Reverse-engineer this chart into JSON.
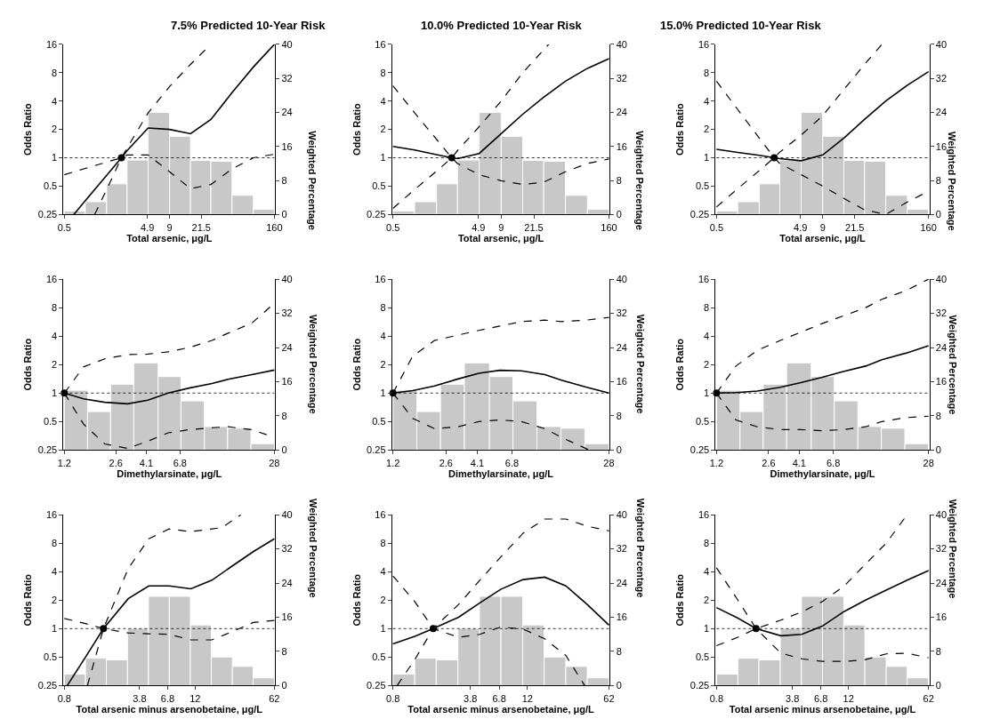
{
  "chart_data": [
    {
      "type": "line",
      "title": "7.5% Predicted 10-Year Risk",
      "xlabel": "Total arsenic, μg/L",
      "ylabel": "Odds Ratio",
      "y2label": "Weighted Percentage",
      "log": "xy",
      "xlim": [
        0.5,
        160
      ],
      "xticks": [
        0.5,
        4.9,
        9,
        21.5,
        160
      ],
      "ylim": [
        0.25,
        16
      ],
      "yticks": [
        0.25,
        0.5,
        1,
        2,
        4,
        8,
        16
      ],
      "y2lim": [
        0,
        40
      ],
      "y2ticks": [
        0,
        8,
        16,
        24,
        32,
        40
      ],
      "grid": false,
      "legend": false,
      "ref_lines": [
        {
          "axis": "y",
          "value": 1,
          "color": "#000000",
          "line_style": "dotted"
        }
      ],
      "series": [
        {
          "type": "histogram",
          "axis": "y2",
          "color": "#c8c8c8",
          "bins": [
            0.5,
            0.89,
            1.6,
            2.8,
            5,
            9,
            16,
            28,
            50,
            90,
            160
          ],
          "values": [
            0.8,
            3,
            7.2,
            12.8,
            24,
            18.4,
            12.7,
            12.5,
            4.5,
            1.2
          ]
        },
        {
          "type": "line",
          "color": "#000000",
          "line_style": "solid",
          "x": [
            0.65,
            0.89,
            1.6,
            2.4,
            2.8,
            5,
            9,
            16,
            28,
            50,
            90,
            160
          ],
          "values": [
            0.25,
            0.35,
            0.65,
            1,
            1.19,
            2.07,
            2,
            1.8,
            2.55,
            4.9,
            9.2,
            16
          ]
        },
        {
          "type": "line",
          "color": "#000000",
          "line_style": "dashed",
          "x": [
            1.15,
            1.6,
            2.4,
            2.8,
            5,
            9,
            16,
            28
          ],
          "values": [
            0.25,
            0.46,
            1,
            1.27,
            3.0,
            5.7,
            9.8,
            16
          ]
        },
        {
          "type": "line",
          "color": "#000000",
          "line_style": "dashed",
          "x": [
            0.5,
            0.89,
            1.6,
            2.4,
            2.8,
            5,
            9,
            16,
            28,
            50,
            90,
            160
          ],
          "values": [
            0.66,
            0.77,
            0.9,
            1,
            1.07,
            1.07,
            0.71,
            0.47,
            0.52,
            0.76,
            1,
            1.09
          ]
        },
        {
          "type": "scatter",
          "color": "#000000",
          "marker": "circle",
          "x": [
            2.4
          ],
          "values": [
            1
          ]
        }
      ]
    },
    {
      "type": "line",
      "title": "10.0% Predicted 10-Year Risk",
      "xlabel": "Total arsenic, μg/L",
      "ylabel": "Odds Ratio",
      "y2label": "Weighted Percentage",
      "log": "xy",
      "xlim": [
        0.5,
        160
      ],
      "xticks": [
        0.5,
        4.9,
        9,
        21.5,
        160
      ],
      "ylim": [
        0.25,
        16
      ],
      "yticks": [
        0.25,
        0.5,
        1,
        2,
        4,
        8,
        16
      ],
      "y2lim": [
        0,
        40
      ],
      "y2ticks": [
        0,
        8,
        16,
        24,
        32,
        40
      ],
      "grid": false,
      "legend": false,
      "ref_lines": [
        {
          "axis": "y",
          "value": 1,
          "color": "#000000",
          "line_style": "dotted"
        }
      ],
      "series": [
        {
          "type": "histogram",
          "axis": "y2",
          "color": "#c8c8c8",
          "bins": [
            0.5,
            0.89,
            1.6,
            2.8,
            5,
            9,
            16,
            28,
            50,
            90,
            160
          ],
          "values": [
            0.8,
            3,
            7.2,
            12.8,
            24,
            18.4,
            12.7,
            12.5,
            4.5,
            1.2
          ]
        },
        {
          "type": "line",
          "color": "#000000",
          "line_style": "solid",
          "x": [
            0.5,
            0.89,
            1.6,
            2.4,
            2.8,
            5,
            9,
            16,
            28,
            50,
            90,
            160
          ],
          "values": [
            1.32,
            1.21,
            1.08,
            1,
            0.98,
            1.11,
            1.8,
            2.9,
            4.4,
            6.5,
            8.9,
            11.3
          ]
        },
        {
          "type": "line",
          "color": "#000000",
          "line_style": "dashed",
          "x": [
            0.5,
            0.89,
            1.6,
            2.4,
            2.8,
            5,
            9,
            16,
            32
          ],
          "values": [
            0.29,
            0.46,
            0.72,
            1,
            1.19,
            2.14,
            4,
            8,
            16
          ]
        },
        {
          "type": "line",
          "color": "#000000",
          "line_style": "dashed",
          "x": [
            0.5,
            0.89,
            1.6,
            2.4,
            2.8,
            5,
            9,
            16,
            28,
            50,
            90,
            160
          ],
          "values": [
            5.8,
            3.0,
            1.57,
            1,
            0.87,
            0.66,
            0.57,
            0.52,
            0.55,
            0.71,
            0.87,
            0.97
          ]
        },
        {
          "type": "scatter",
          "color": "#000000",
          "marker": "circle",
          "x": [
            2.4
          ],
          "values": [
            1
          ]
        }
      ]
    },
    {
      "type": "line",
      "title": "15.0% Predicted 10-Year Risk",
      "xlabel": "Total arsenic, μg/L",
      "ylabel": "Odds Ratio",
      "y2label": "Weighted Percentage",
      "log": "xy",
      "xlim": [
        0.5,
        160
      ],
      "xticks": [
        0.5,
        4.9,
        9,
        21.5,
        160
      ],
      "ylim": [
        0.25,
        16
      ],
      "yticks": [
        0.25,
        0.5,
        1,
        2,
        4,
        8,
        16
      ],
      "y2lim": [
        0,
        40
      ],
      "y2ticks": [
        0,
        8,
        16,
        24,
        32,
        40
      ],
      "grid": false,
      "legend": false,
      "ref_lines": [
        {
          "axis": "y",
          "value": 1,
          "color": "#000000",
          "line_style": "dotted"
        }
      ],
      "series": [
        {
          "type": "histogram",
          "axis": "y2",
          "color": "#c8c8c8",
          "bins": [
            0.5,
            0.89,
            1.6,
            2.8,
            5,
            9,
            16,
            28,
            50,
            90,
            160
          ],
          "values": [
            0.8,
            3,
            7.2,
            12.8,
            24,
            18.4,
            12.7,
            12.5,
            4.5,
            1.2
          ]
        },
        {
          "type": "line",
          "color": "#000000",
          "line_style": "solid",
          "x": [
            0.5,
            0.89,
            1.6,
            2.4,
            2.8,
            5,
            9,
            16,
            28,
            50,
            90,
            160
          ],
          "values": [
            1.23,
            1.14,
            1.06,
            1,
            0.98,
            0.93,
            1.07,
            1.62,
            2.55,
            4,
            5.9,
            8.2
          ]
        },
        {
          "type": "line",
          "color": "#000000",
          "line_style": "dashed",
          "x": [
            0.5,
            0.89,
            1.6,
            2.4,
            2.8,
            5,
            9,
            16,
            28,
            45
          ],
          "values": [
            0.3,
            0.47,
            0.73,
            1,
            1.15,
            1.74,
            2.8,
            5.3,
            9.8,
            16
          ]
        },
        {
          "type": "line",
          "color": "#000000",
          "line_style": "dashed",
          "x": [
            0.5,
            0.89,
            1.6,
            2.4,
            2.8,
            5,
            9,
            16,
            28,
            50,
            90,
            160
          ],
          "values": [
            6.5,
            3.25,
            1.62,
            1,
            0.87,
            0.66,
            0.5,
            0.37,
            0.28,
            0.25,
            0.34,
            0.44
          ]
        },
        {
          "type": "scatter",
          "color": "#000000",
          "marker": "circle",
          "x": [
            2.4
          ],
          "values": [
            1
          ]
        }
      ]
    },
    {
      "type": "line",
      "xlabel": "Dimethylarsinate, μg/L",
      "ylabel": "Odds Ratio",
      "y2label": "Weighted Percentage",
      "log": "xy",
      "xlim": [
        1.2,
        28
      ],
      "xticks": [
        1.2,
        2.6,
        4.1,
        6.8,
        28
      ],
      "ylim": [
        0.25,
        16
      ],
      "yticks": [
        0.25,
        0.5,
        1,
        2,
        4,
        8,
        16
      ],
      "y2lim": [
        0,
        40
      ],
      "y2ticks": [
        0,
        8,
        16,
        24,
        32,
        40
      ],
      "grid": false,
      "legend": false,
      "ref_lines": [
        {
          "axis": "y",
          "value": 1,
          "color": "#000000",
          "line_style": "dotted"
        }
      ],
      "series": [
        {
          "type": "histogram",
          "axis": "y2",
          "color": "#c8c8c8",
          "bins": [
            1.2,
            1.7,
            2.4,
            3.4,
            4.9,
            6.9,
            9.8,
            13.9,
            19.7,
            28
          ],
          "values": [
            14,
            9,
            15.4,
            20.4,
            17.2,
            11.5,
            5.5,
            5.1,
            1.5
          ]
        },
        {
          "type": "line",
          "color": "#000000",
          "line_style": "solid",
          "x": [
            1.2,
            1.6,
            2.2,
            3.1,
            4.2,
            5.7,
            7.8,
            11,
            14,
            20,
            28
          ],
          "values": [
            1,
            0.87,
            0.8,
            0.77,
            0.84,
            1.0,
            1.13,
            1.26,
            1.4,
            1.57,
            1.75
          ]
        },
        {
          "type": "line",
          "color": "#000000",
          "line_style": "dashed",
          "x": [
            1.2,
            1.6,
            2.2,
            3.1,
            4.2,
            5.7,
            7.8,
            11,
            14,
            20,
            28
          ],
          "values": [
            1,
            1.89,
            2.3,
            2.55,
            2.58,
            2.73,
            3.03,
            3.6,
            4.3,
            5.5,
            8.9
          ]
        },
        {
          "type": "line",
          "color": "#000000",
          "line_style": "dashed",
          "x": [
            1.2,
            1.6,
            2.2,
            3.1,
            4.2,
            5.7,
            7.8,
            11,
            14,
            20,
            28
          ],
          "values": [
            1,
            0.47,
            0.29,
            0.26,
            0.31,
            0.38,
            0.41,
            0.43,
            0.44,
            0.41,
            0.34
          ]
        },
        {
          "type": "scatter",
          "color": "#000000",
          "marker": "circle",
          "x": [
            1.2
          ],
          "values": [
            1
          ]
        }
      ]
    },
    {
      "type": "line",
      "xlabel": "Dimethylarsinate, μg/L",
      "ylabel": "Odds Ratio",
      "y2label": "Weighted Percentage",
      "log": "xy",
      "xlim": [
        1.2,
        28
      ],
      "xticks": [
        1.2,
        2.6,
        4.1,
        6.8,
        28
      ],
      "ylim": [
        0.25,
        16
      ],
      "yticks": [
        0.25,
        0.5,
        1,
        2,
        4,
        8,
        16
      ],
      "y2lim": [
        0,
        40
      ],
      "y2ticks": [
        0,
        8,
        16,
        24,
        32,
        40
      ],
      "grid": false,
      "legend": false,
      "ref_lines": [
        {
          "axis": "y",
          "value": 1,
          "color": "#000000",
          "line_style": "dotted"
        }
      ],
      "series": [
        {
          "type": "histogram",
          "axis": "y2",
          "color": "#c8c8c8",
          "bins": [
            1.2,
            1.7,
            2.4,
            3.4,
            4.9,
            6.9,
            9.8,
            13.9,
            19.7,
            28
          ],
          "values": [
            14,
            9,
            15.4,
            20.4,
            17.2,
            11.5,
            5.5,
            5.1,
            1.5
          ]
        },
        {
          "type": "line",
          "color": "#000000",
          "line_style": "solid",
          "x": [
            1.2,
            1.6,
            2.2,
            3.1,
            4.2,
            5.7,
            7.8,
            11,
            14,
            20,
            28
          ],
          "values": [
            1,
            1.06,
            1.19,
            1.41,
            1.62,
            1.74,
            1.72,
            1.57,
            1.37,
            1.16,
            1
          ]
        },
        {
          "type": "line",
          "color": "#000000",
          "line_style": "dashed",
          "x": [
            1.2,
            1.6,
            2.2,
            3.1,
            4.2,
            5.7,
            7.8,
            11,
            14,
            20,
            28
          ],
          "values": [
            1,
            2.46,
            3.6,
            4.1,
            4.6,
            5.1,
            5.7,
            5.9,
            5.7,
            5.9,
            6.3
          ]
        },
        {
          "type": "line",
          "color": "#000000",
          "line_style": "dashed",
          "x": [
            1.2,
            1.6,
            2.2,
            3.1,
            4.2,
            5.7,
            7.8,
            11,
            14,
            21
          ],
          "values": [
            1,
            0.54,
            0.42,
            0.44,
            0.5,
            0.52,
            0.5,
            0.42,
            0.34,
            0.25
          ]
        },
        {
          "type": "scatter",
          "color": "#000000",
          "marker": "circle",
          "x": [
            1.2
          ],
          "values": [
            1
          ]
        }
      ]
    },
    {
      "type": "line",
      "xlabel": "Dimethylarsinate, μg/L",
      "ylabel": "Odds Ratio",
      "y2label": "Weighted Percentage",
      "log": "xy",
      "xlim": [
        1.2,
        28
      ],
      "xticks": [
        1.2,
        2.6,
        4.1,
        6.8,
        28
      ],
      "ylim": [
        0.25,
        16
      ],
      "yticks": [
        0.25,
        0.5,
        1,
        2,
        4,
        8,
        16
      ],
      "y2lim": [
        0,
        40
      ],
      "y2ticks": [
        0,
        8,
        16,
        24,
        32,
        40
      ],
      "grid": false,
      "legend": false,
      "ref_lines": [
        {
          "axis": "y",
          "value": 1,
          "color": "#000000",
          "line_style": "dotted"
        }
      ],
      "series": [
        {
          "type": "histogram",
          "axis": "y2",
          "color": "#c8c8c8",
          "bins": [
            1.2,
            1.7,
            2.4,
            3.4,
            4.9,
            6.9,
            9.8,
            13.9,
            19.7,
            28
          ],
          "values": [
            14,
            9,
            15.4,
            20.4,
            17.2,
            11.5,
            5.5,
            5.1,
            1.5
          ]
        },
        {
          "type": "line",
          "color": "#000000",
          "line_style": "solid",
          "x": [
            1.2,
            1.6,
            2.2,
            3.1,
            4.2,
            5.7,
            7.8,
            11,
            14,
            20,
            28
          ],
          "values": [
            1,
            1.01,
            1.05,
            1.15,
            1.29,
            1.46,
            1.68,
            1.93,
            2.25,
            2.64,
            3.16
          ]
        },
        {
          "type": "line",
          "color": "#000000",
          "line_style": "dashed",
          "x": [
            1.2,
            1.6,
            2.2,
            3.1,
            4.2,
            5.7,
            7.8,
            11,
            14,
            20,
            28
          ],
          "values": [
            1,
            1.93,
            2.83,
            3.6,
            4.4,
            5.4,
            6.5,
            8,
            9.8,
            12.1,
            16
          ]
        },
        {
          "type": "line",
          "color": "#000000",
          "line_style": "dashed",
          "x": [
            1.2,
            1.6,
            2.2,
            3.1,
            4.2,
            5.7,
            7.8,
            11,
            14,
            20,
            28
          ],
          "values": [
            1,
            0.52,
            0.44,
            0.41,
            0.41,
            0.4,
            0.41,
            0.44,
            0.5,
            0.55,
            0.57
          ]
        },
        {
          "type": "scatter",
          "color": "#000000",
          "marker": "circle",
          "x": [
            1.2
          ],
          "values": [
            1
          ]
        }
      ]
    },
    {
      "type": "line",
      "xlabel": "Total arsenic minus arsenobetaine, μg/L",
      "ylabel": "Odds Ratio",
      "y2label": "Weighted Percentage",
      "log": "xy",
      "xlim": [
        0.8,
        62
      ],
      "xticks": [
        0.8,
        3.8,
        6.8,
        12,
        62
      ],
      "ylim": [
        0.25,
        16
      ],
      "yticks": [
        0.25,
        0.5,
        1,
        2,
        4,
        8,
        16
      ],
      "y2lim": [
        0,
        40
      ],
      "y2ticks": [
        0,
        8,
        16,
        24,
        32,
        40
      ],
      "grid": false,
      "legend": false,
      "ref_lines": [
        {
          "axis": "y",
          "value": 1,
          "color": "#000000",
          "line_style": "dotted"
        }
      ],
      "series": [
        {
          "type": "histogram",
          "axis": "y2",
          "color": "#c8c8c8",
          "bins": [
            0.8,
            1.24,
            1.91,
            2.96,
            4.57,
            7.04,
            10.9,
            16.8,
            26,
            40,
            62
          ],
          "values": [
            2.7,
            6.4,
            6,
            13.4,
            20.9,
            20.9,
            14.2,
            6.7,
            4.5,
            1.8
          ]
        },
        {
          "type": "line",
          "color": "#000000",
          "line_style": "solid",
          "x": [
            0.85,
            1.24,
            1.8,
            3.0,
            4.6,
            7.0,
            11,
            17,
            26,
            40,
            62
          ],
          "values": [
            0.25,
            0.5,
            1,
            2.07,
            2.83,
            2.83,
            2.64,
            3.25,
            4.6,
            6.5,
            8.9
          ]
        },
        {
          "type": "line",
          "color": "#000000",
          "line_style": "dashed",
          "x": [
            1.29,
            1.8,
            3.0,
            4.6,
            7.0,
            11,
            21,
            31
          ],
          "values": [
            0.25,
            1,
            4.3,
            8.9,
            11.3,
            10.6,
            11.7,
            16
          ]
        },
        {
          "type": "line",
          "color": "#000000",
          "line_style": "dashed",
          "x": [
            0.8,
            1.24,
            1.8,
            3.0,
            4.6,
            7.0,
            11,
            17,
            26,
            40,
            62
          ],
          "values": [
            1.28,
            1.13,
            1,
            0.9,
            0.88,
            0.87,
            0.76,
            0.76,
            0.93,
            1.16,
            1.22
          ]
        },
        {
          "type": "scatter",
          "color": "#000000",
          "marker": "circle",
          "x": [
            1.8
          ],
          "values": [
            1
          ]
        }
      ]
    },
    {
      "type": "line",
      "xlabel": "Total arsenic minus arsenobetaine, μg/L",
      "ylabel": "Odds Ratio",
      "y2label": "Weighted Percentage",
      "log": "xy",
      "xlim": [
        0.8,
        62
      ],
      "xticks": [
        0.8,
        3.8,
        6.8,
        12,
        62
      ],
      "ylim": [
        0.25,
        16
      ],
      "yticks": [
        0.25,
        0.5,
        1,
        2,
        4,
        8,
        16
      ],
      "y2lim": [
        0,
        40
      ],
      "y2ticks": [
        0,
        8,
        16,
        24,
        32,
        40
      ],
      "grid": false,
      "legend": false,
      "ref_lines": [
        {
          "axis": "y",
          "value": 1,
          "color": "#000000",
          "line_style": "dotted"
        }
      ],
      "series": [
        {
          "type": "histogram",
          "axis": "y2",
          "color": "#c8c8c8",
          "bins": [
            0.8,
            1.24,
            1.91,
            2.96,
            4.57,
            7.04,
            10.9,
            16.8,
            26,
            40,
            62
          ],
          "values": [
            2.7,
            6.4,
            6,
            13.4,
            20.9,
            20.9,
            14.2,
            6.7,
            4.5,
            1.8
          ]
        },
        {
          "type": "line",
          "color": "#000000",
          "line_style": "solid",
          "x": [
            0.8,
            1.24,
            1.8,
            3.0,
            4.6,
            7.0,
            11,
            17,
            26,
            40,
            62
          ],
          "values": [
            0.69,
            0.83,
            1,
            1.32,
            1.87,
            2.6,
            3.3,
            3.5,
            2.83,
            1.8,
            1.09
          ]
        },
        {
          "type": "line",
          "color": "#000000",
          "line_style": "dashed",
          "x": [
            0.87,
            1.24,
            1.8,
            3.0,
            4.6,
            7.0,
            11,
            17,
            26,
            40,
            62
          ],
          "values": [
            0.25,
            0.47,
            1,
            1.8,
            3.25,
            5.7,
            10.2,
            14.4,
            14.4,
            12.1,
            10.8
          ]
        },
        {
          "type": "line",
          "color": "#000000",
          "line_style": "dashed",
          "x": [
            0.8,
            1.24,
            1.8,
            3.0,
            4.6,
            7.0,
            11,
            17,
            26,
            38
          ],
          "values": [
            3.6,
            1.93,
            1,
            0.81,
            0.87,
            1.04,
            0.99,
            0.78,
            0.52,
            0.25
          ]
        },
        {
          "type": "scatter",
          "color": "#000000",
          "marker": "circle",
          "x": [
            1.8
          ],
          "values": [
            1
          ]
        }
      ]
    },
    {
      "type": "line",
      "xlabel": "Total arsenic minus arsenobetaine, μg/L",
      "ylabel": "Odds Ratio",
      "y2label": "Weighted Percentage",
      "log": "xy",
      "xlim": [
        0.8,
        62
      ],
      "xticks": [
        0.8,
        3.8,
        6.8,
        12,
        62
      ],
      "ylim": [
        0.25,
        16
      ],
      "yticks": [
        0.25,
        0.5,
        1,
        2,
        4,
        8,
        16
      ],
      "y2lim": [
        0,
        40
      ],
      "y2ticks": [
        0,
        8,
        16,
        24,
        32,
        40
      ],
      "grid": false,
      "legend": false,
      "ref_lines": [
        {
          "axis": "y",
          "value": 1,
          "color": "#000000",
          "line_style": "dotted"
        }
      ],
      "series": [
        {
          "type": "histogram",
          "axis": "y2",
          "color": "#c8c8c8",
          "bins": [
            0.8,
            1.24,
            1.91,
            2.96,
            4.57,
            7.04,
            10.9,
            16.8,
            26,
            40,
            62
          ],
          "values": [
            2.7,
            6.4,
            6,
            13.4,
            20.9,
            20.9,
            14.2,
            6.7,
            4.5,
            1.8
          ]
        },
        {
          "type": "line",
          "color": "#000000",
          "line_style": "solid",
          "x": [
            0.8,
            1.24,
            1.8,
            3.0,
            4.6,
            7.0,
            11,
            17,
            26,
            40,
            62
          ],
          "values": [
            1.67,
            1.29,
            1,
            0.84,
            0.87,
            1.06,
            1.52,
            2,
            2.55,
            3.25,
            4.1
          ]
        },
        {
          "type": "line",
          "color": "#000000",
          "line_style": "dashed",
          "x": [
            0.8,
            1.24,
            1.8,
            3.0,
            4.6,
            7.0,
            11,
            17,
            26,
            40
          ],
          "values": [
            0.66,
            0.81,
            1,
            1.23,
            1.5,
            1.93,
            2.83,
            4.8,
            8,
            16
          ]
        },
        {
          "type": "line",
          "color": "#000000",
          "line_style": "dashed",
          "x": [
            0.8,
            1.24,
            1.8,
            3.0,
            4.6,
            7.0,
            11,
            17,
            26,
            40,
            62
          ],
          "values": [
            4.4,
            2,
            1,
            0.55,
            0.48,
            0.45,
            0.45,
            0.47,
            0.54,
            0.55,
            0.49
          ]
        },
        {
          "type": "scatter",
          "color": "#000000",
          "marker": "circle",
          "x": [
            1.8
          ],
          "values": [
            1
          ]
        }
      ]
    }
  ]
}
